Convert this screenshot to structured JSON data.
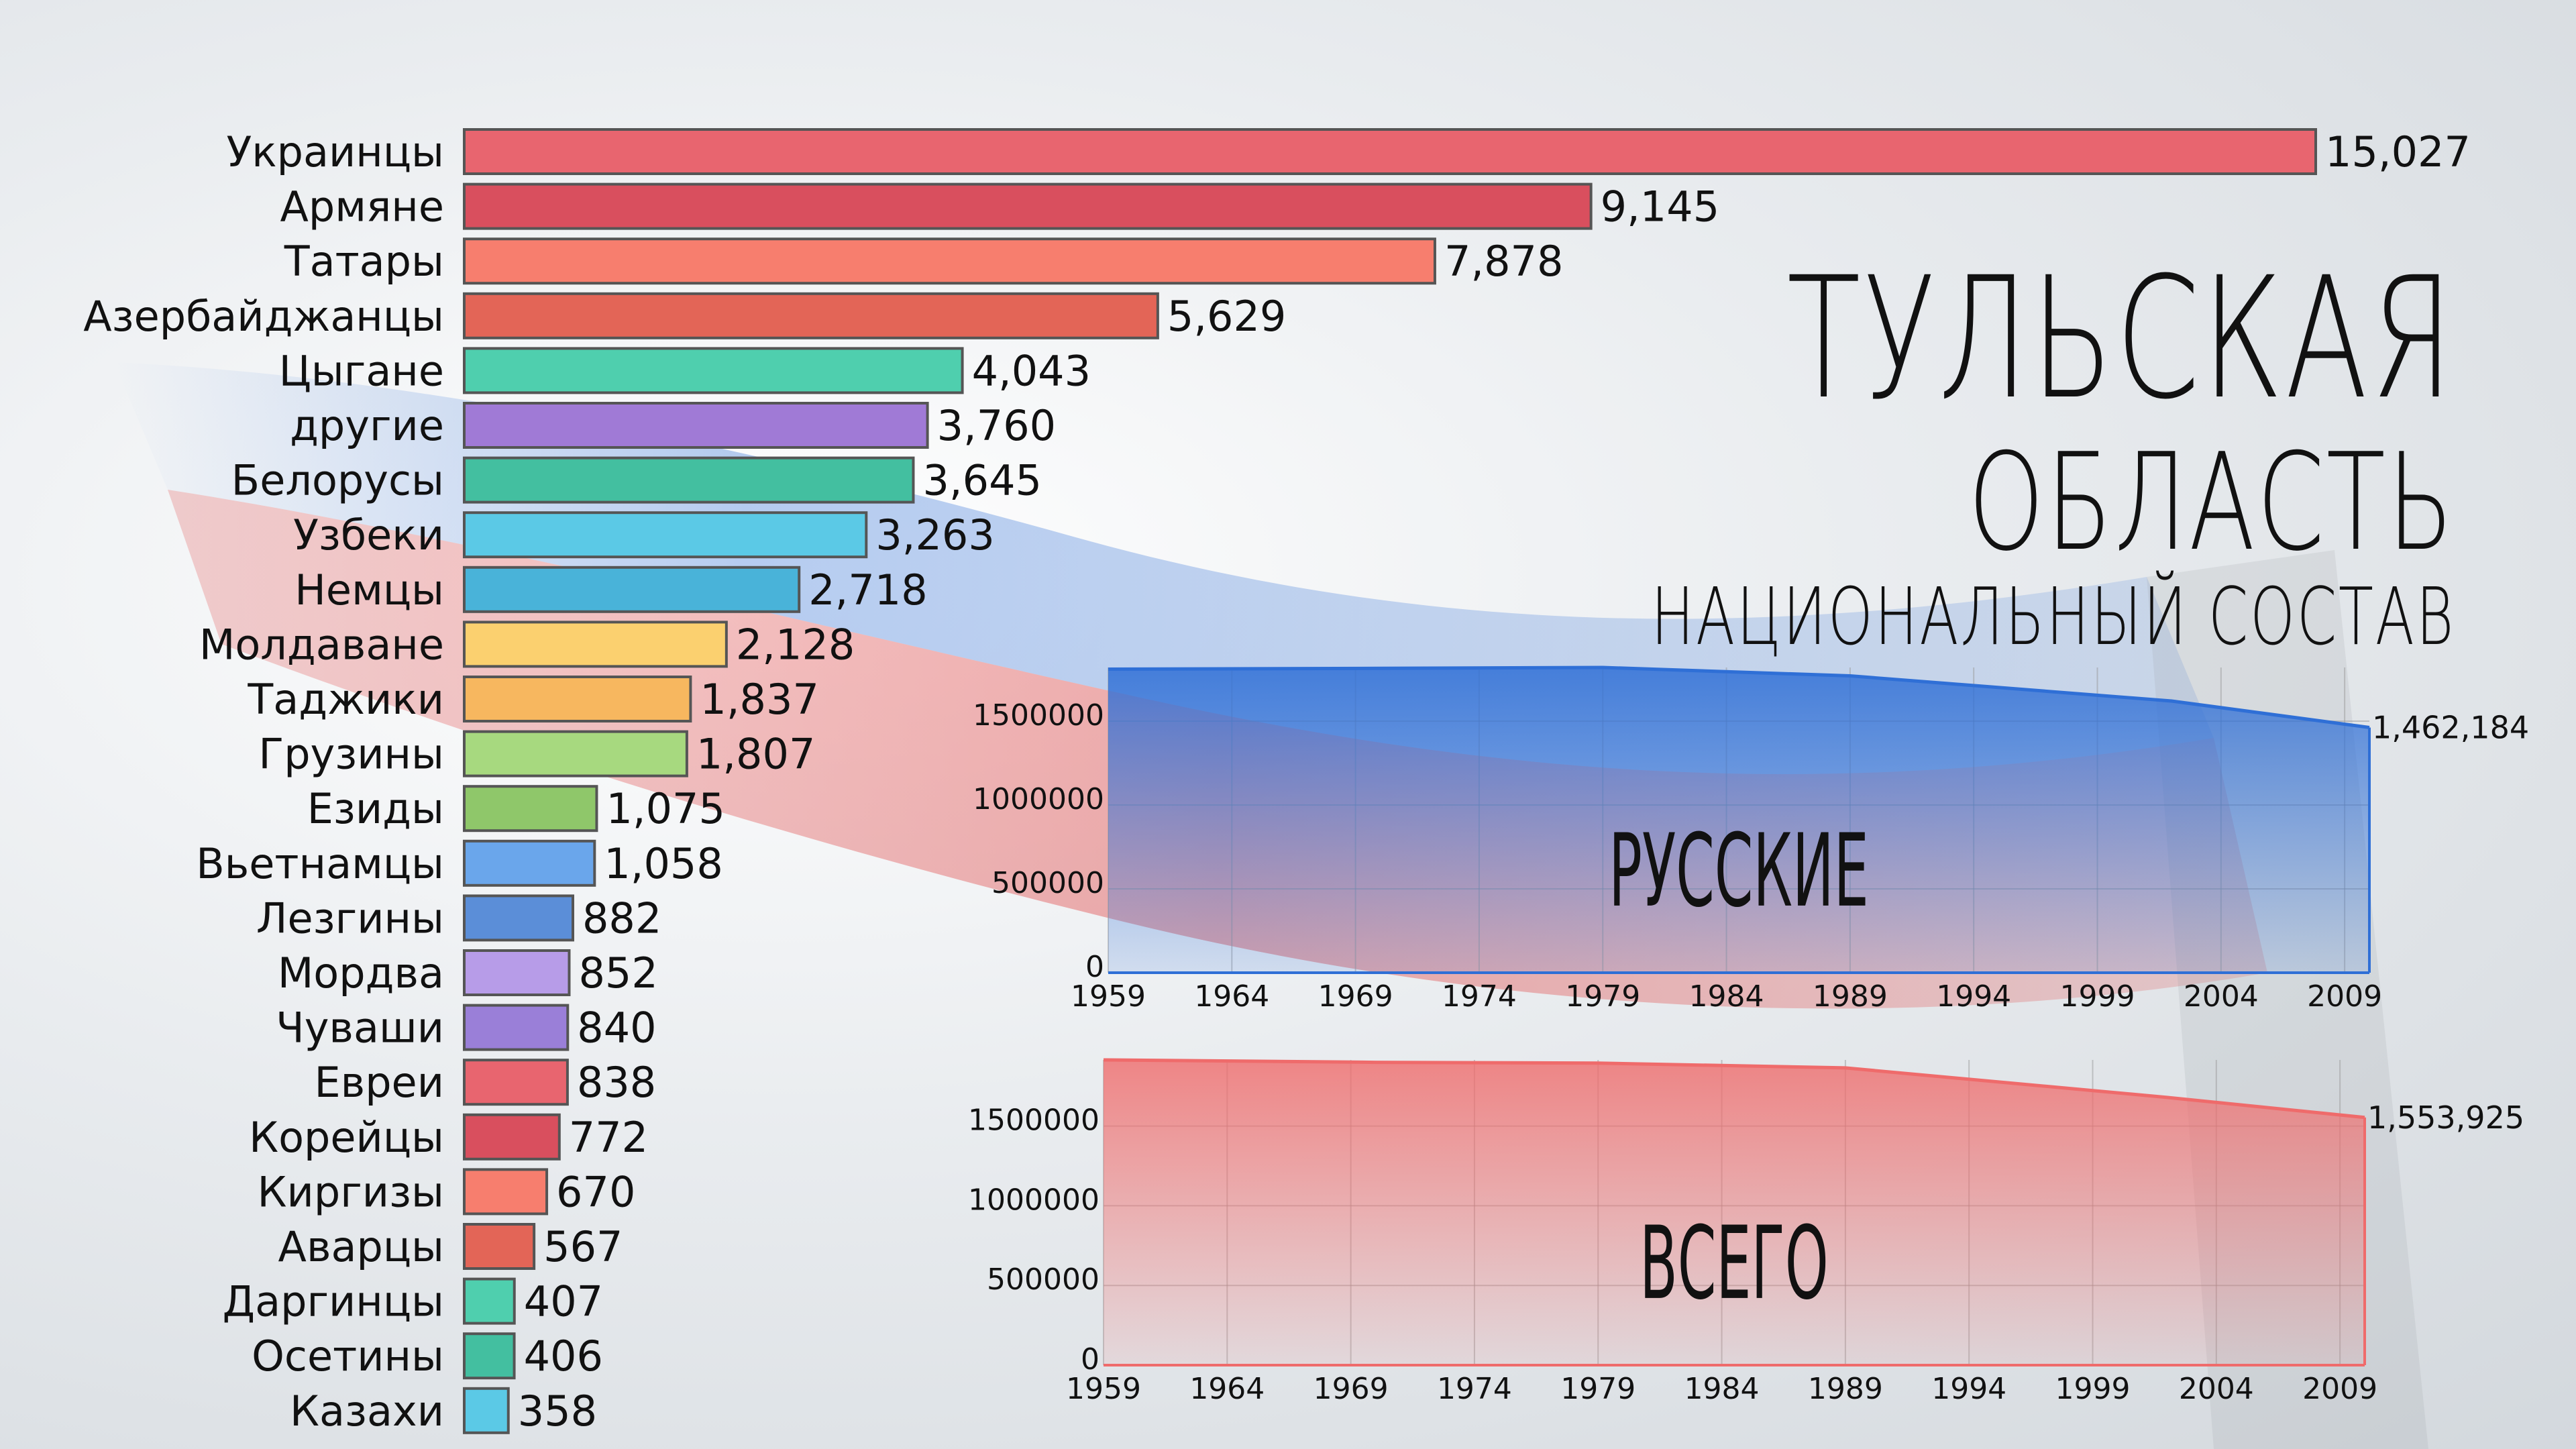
{
  "title": {
    "line1": "ТУЛЬСКАЯ",
    "line2": "ОБЛАСТЬ",
    "line3": "НАЦИОНАЛЬНЫЙ СОСТАВ"
  },
  "chart_data": [
    {
      "type": "bar",
      "orientation": "horizontal",
      "categories": [
        "Украинцы",
        "Армяне",
        "Татары",
        "Азербайджанцы",
        "Цыгане",
        "другие",
        "Белорусы",
        "Узбеки",
        "Немцы",
        "Молдаване",
        "Таджики",
        "Грузины",
        "Езиды",
        "Вьетнамцы",
        "Лезгины",
        "Мордва",
        "Чуваши",
        "Евреи",
        "Корейцы",
        "Киргизы",
        "Аварцы",
        "Даргинцы",
        "Осетины",
        "Казахи"
      ],
      "values": [
        15027,
        9145,
        7878,
        5629,
        4043,
        3760,
        3645,
        3263,
        2718,
        2128,
        1837,
        1807,
        1075,
        1058,
        882,
        852,
        840,
        838,
        772,
        670,
        567,
        407,
        406,
        358
      ],
      "value_labels": [
        "15,027",
        "9,145",
        "7,878",
        "5,629",
        "4,043",
        "3,760",
        "3,645",
        "3,263",
        "2,718",
        "2,128",
        "1,837",
        "1,807",
        "1,075",
        "1,058",
        "882",
        "852",
        "840",
        "838",
        "772",
        "670",
        "567",
        "407",
        "406",
        "358"
      ],
      "colors": [
        "#e8656f",
        "#d94f5e",
        "#f77e6e",
        "#e36557",
        "#4fcfae",
        "#a07ad6",
        "#43bfa0",
        "#5bc9e6",
        "#49b3d9",
        "#fbd06f",
        "#f7b75f",
        "#a7d97f",
        "#8fc76a",
        "#6aa6eb",
        "#5b8ed8",
        "#b79ce8",
        "#9a7fd8",
        "#e8656f",
        "#d94f5e",
        "#f77e6e",
        "#e36557",
        "#4fcfae",
        "#43bfa0",
        "#5bc9e6"
      ],
      "xlim": [
        0,
        15027
      ]
    },
    {
      "type": "area",
      "label": "РУССКИЕ",
      "x": [
        1959,
        1970,
        1979,
        1989,
        2002,
        2010
      ],
      "y": [
        1810000,
        1815000,
        1820000,
        1770000,
        1620000,
        1462184
      ],
      "end_label": "1,462,184",
      "xticks": [
        "1959",
        "1964",
        "1969",
        "1974",
        "1979",
        "1984",
        "1989",
        "1994",
        "1999",
        "2004",
        "2009"
      ],
      "yticks": [
        "0",
        "500000",
        "1000000",
        "1500000"
      ],
      "xlim": [
        1959,
        2010
      ],
      "ylim": [
        0,
        1820000
      ],
      "color": "#2f6fd6"
    },
    {
      "type": "area",
      "label": "ВСЕГО",
      "x": [
        1959,
        1970,
        1979,
        1989,
        2002,
        2010
      ],
      "y": [
        1915000,
        1900000,
        1895000,
        1865000,
        1680000,
        1553925
      ],
      "end_label": "1,553,925",
      "xticks": [
        "1959",
        "1964",
        "1969",
        "1974",
        "1979",
        "1984",
        "1989",
        "1994",
        "1999",
        "2004",
        "2009"
      ],
      "yticks": [
        "0",
        "500000",
        "1000000",
        "1500000"
      ],
      "xlim": [
        1959,
        2010
      ],
      "ylim": [
        0,
        1915000
      ],
      "color": "#ef6b6b"
    }
  ]
}
